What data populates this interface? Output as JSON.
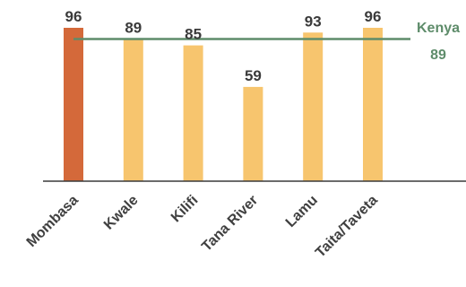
{
  "chart_data": {
    "type": "bar",
    "categories": [
      "Mombasa",
      "Kwale",
      "Kilifi",
      "Tana River",
      "Lamu",
      "Taita/Taveta"
    ],
    "values": [
      96,
      89,
      85,
      59,
      93,
      96
    ],
    "highlight_index": 0,
    "ylim": [
      0,
      96
    ],
    "grid": false,
    "reference_line": {
      "name": "Kenya",
      "value": 89
    },
    "colors": {
      "highlight": "#d4693a",
      "bar": "#f7c56e",
      "reference": "#5e8c6a",
      "axis": "#3a3a3a",
      "value_text": "#3a3a3a",
      "tick_text": "#404040"
    }
  }
}
